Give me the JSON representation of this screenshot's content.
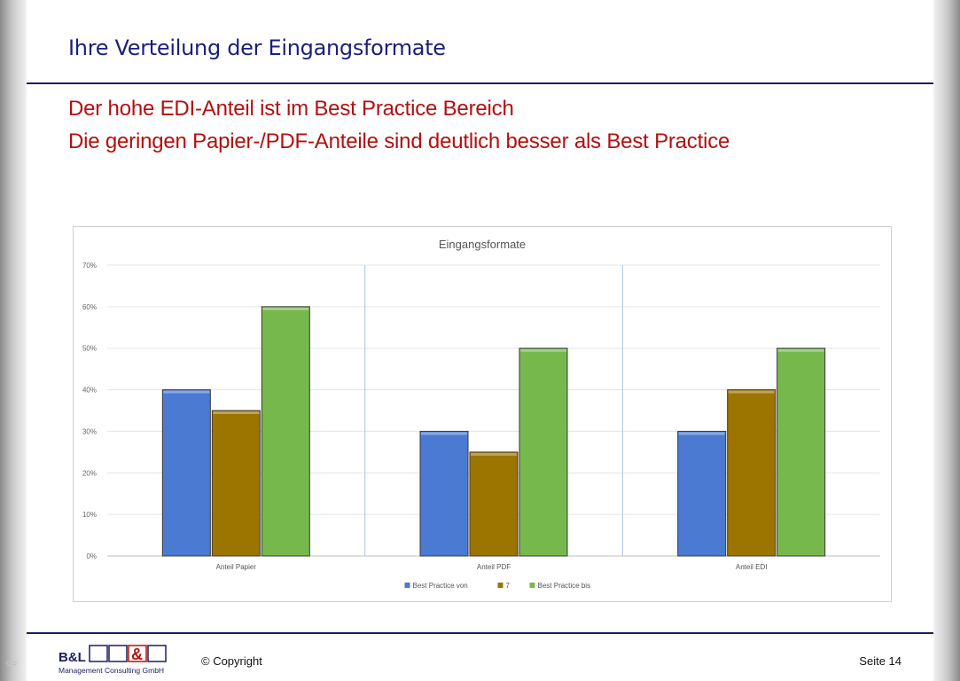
{
  "header": {
    "title": "Ihre Verteilung der Eingangsformate",
    "subtitle_line1": "Der hohe EDI-Anteil ist im Best Practice Bereich",
    "subtitle_line2": "Die geringen Papier-/PDF-Anteile sind deutlich besser als Best Practice"
  },
  "chart_data": {
    "type": "bar",
    "title": "Eingangsformate",
    "categories": [
      "Anteil Papier",
      "Anteil PDF",
      "Anteil EDI"
    ],
    "series": [
      {
        "name": "Best Practice von",
        "values": [
          40,
          30,
          30
        ],
        "color": "#4a7ad2"
      },
      {
        "name": "7",
        "values": [
          35,
          25,
          40
        ],
        "color": "#9c7400"
      },
      {
        "name": "Best Practice bis",
        "values": [
          60,
          50,
          50
        ],
        "color": "#76b84c"
      }
    ],
    "ylim": [
      0,
      70
    ],
    "yticks": [
      "0%",
      "10%",
      "20%",
      "30%",
      "40%",
      "50%",
      "60%",
      "70%"
    ],
    "grid": true,
    "legend": "bottom"
  },
  "footer": {
    "logo_text": "B&L",
    "logo_subtext": "Management Consulting GmbH",
    "copyright": "© Copyright",
    "page": "Seite 14"
  },
  "colors": {
    "title": "#1b1f7a",
    "subtitle": "#b3100f",
    "rule": "#1b1f5e"
  }
}
